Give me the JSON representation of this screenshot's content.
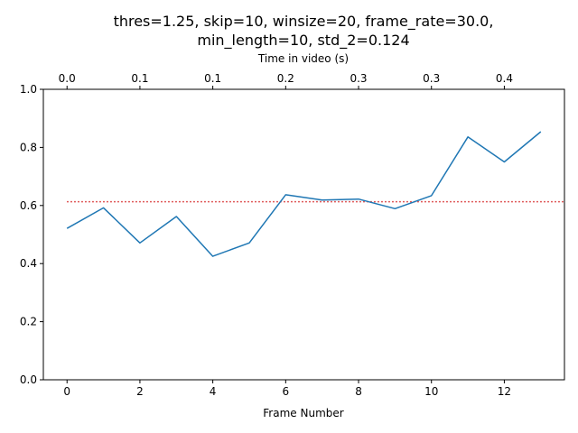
{
  "chart_data": {
    "type": "line",
    "title_lines": [
      "thres=1.25, skip=10, winsize=20, frame_rate=30.0,",
      "min_length=10, std_2=0.124"
    ],
    "xlabel": "Frame Number",
    "ylabel": "",
    "top_xlabel": "Time in video (s)",
    "xlim": [
      -0.65,
      13.65
    ],
    "ylim": [
      0.0,
      1.0
    ],
    "x_ticks": [
      0,
      2,
      4,
      6,
      8,
      10,
      12
    ],
    "x_tick_labels": [
      "0",
      "2",
      "4",
      "6",
      "8",
      "10",
      "12"
    ],
    "y_ticks": [
      0.0,
      0.2,
      0.4,
      0.6,
      0.8,
      1.0
    ],
    "y_tick_labels": [
      "0.0",
      "0.2",
      "0.4",
      "0.6",
      "0.8",
      "1.0"
    ],
    "top_ticks": [
      0,
      2,
      4,
      6,
      8,
      10,
      12
    ],
    "top_tick_labels": [
      "0.0",
      "0.1",
      "0.1",
      "0.2",
      "0.3",
      "0.3",
      "0.4"
    ],
    "grid": false,
    "series": [
      {
        "x": [
          0,
          1,
          2,
          3,
          4,
          5,
          6,
          7,
          8,
          9,
          10,
          11,
          12,
          13
        ],
        "values": [
          0.521,
          0.592,
          0.471,
          0.562,
          0.425,
          0.471,
          0.637,
          0.619,
          0.622,
          0.589,
          0.634,
          0.836,
          0.75,
          0.854
        ],
        "color": "#1f77b4",
        "style": "solid"
      }
    ],
    "threshold": {
      "value": 0.613,
      "x_range": [
        0,
        13.65
      ],
      "color": "#d62728",
      "style": "dotted"
    }
  }
}
